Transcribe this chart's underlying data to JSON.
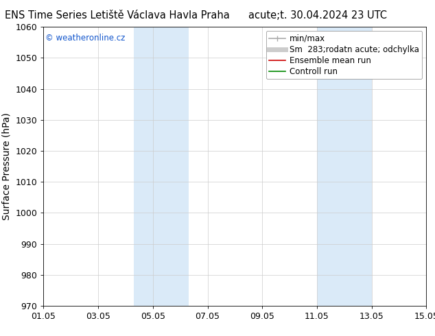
{
  "title_left": "ENS Time Series Letiště Václava Havla Praha",
  "title_right": "acute;t. 30.04.2024 23 UTC",
  "ylabel": "Surface Pressure (hPa)",
  "ylim": [
    970,
    1060
  ],
  "yticks": [
    970,
    980,
    990,
    1000,
    1010,
    1020,
    1030,
    1040,
    1050,
    1060
  ],
  "xlim_start": 0,
  "xlim_end": 14,
  "xtick_labels": [
    "01.05",
    "03.05",
    "05.05",
    "07.05",
    "09.05",
    "11.05",
    "13.05",
    "15.05"
  ],
  "xtick_positions": [
    0,
    2,
    4,
    6,
    8,
    10,
    12,
    14
  ],
  "blue_bands": [
    {
      "xstart": 3.3,
      "xend": 5.3
    },
    {
      "xstart": 10.0,
      "xend": 12.0
    }
  ],
  "band_color": "#daeaf8",
  "watermark_text": "© weatheronline.cz",
  "watermark_color": "#1155cc",
  "legend_entries": [
    {
      "label": "min/max",
      "color": "#aaaaaa",
      "lw": 1.2
    },
    {
      "label": "Sm  283;rodatn acute; odchylka",
      "color": "#cccccc",
      "lw": 5
    },
    {
      "label": "Ensemble mean run",
      "color": "#cc0000",
      "lw": 1.2
    },
    {
      "label": "Controll run",
      "color": "#008800",
      "lw": 1.2
    }
  ],
  "bg_color": "#ffffff",
  "grid_color": "#cccccc",
  "title_fontsize": 10.5,
  "axis_fontsize": 10,
  "tick_fontsize": 9,
  "legend_fontsize": 8.5
}
